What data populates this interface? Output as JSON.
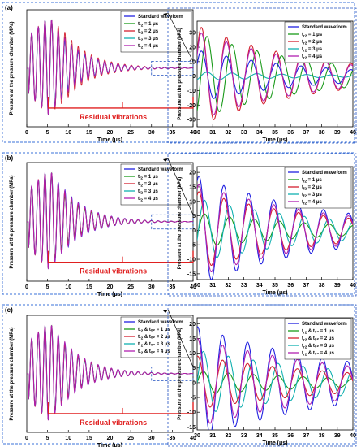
{
  "figure": {
    "panels": [
      {
        "label": "(a)",
        "annotation": "Residual vibrations",
        "legend": [
          "Standard waveform",
          "t_r2 = 1 μs",
          "t_r2 = 2 μs",
          "t_r2 = 3 μs",
          "t_r2 = 4 μs"
        ],
        "legend_display": [
          {
            "main": "Standard waveform",
            "sub": "",
            "tail": ""
          },
          {
            "main": "t",
            "sub": "r2",
            "tail": " = 1 μs"
          },
          {
            "main": "t",
            "sub": "r2",
            "tail": " = 2 μs"
          },
          {
            "main": "t",
            "sub": "r2",
            "tail": " = 3 μs"
          },
          {
            "main": "t",
            "sub": "r2",
            "tail": " = 4 μs"
          }
        ],
        "left_plot": {
          "type": "line",
          "xlabel": "Time (μs)",
          "ylabel": "Pressure at the pressure chamber (MPa)",
          "xlim": [
            0,
            40
          ],
          "xticks": [
            0,
            5,
            10,
            15,
            20,
            25,
            30,
            35,
            40
          ],
          "yticks": [],
          "ylim": [
            -1.0,
            1.0
          ],
          "envelope": {
            "peak": 0.85,
            "first_peak_time": 6.0,
            "period": 1.6,
            "decay_rate": 0.16,
            "rise_end": 5.5
          },
          "series_scale": [
            1.0,
            1.05,
            1.25,
            0.9,
            1.02
          ]
        },
        "right_plot": {
          "type": "line",
          "xlabel": "Time (μs)",
          "ylabel": "Pressure at the pressure chamber (kPa)",
          "xlim": [
            30,
            40
          ],
          "xticks": [
            30,
            31,
            32,
            33,
            34,
            35,
            36,
            37,
            38,
            39,
            40
          ],
          "ylim": [
            -35,
            38
          ],
          "yticks": [
            -30,
            -20,
            -10,
            0,
            10,
            20,
            30
          ],
          "envelope": {
            "period": 1.6,
            "decay_rate": 0.14,
            "phase": 0.35
          },
          "amplitudes": [
            18,
            30,
            35,
            3,
            31
          ]
        }
      },
      {
        "label": "(b)",
        "annotation": "Residual vibrations",
        "legend": [
          "Standard waveform",
          "t_f2 = 1 μs",
          "t_f2 = 2 μs",
          "t_f2 = 3 μs",
          "t_f2 = 4 μs"
        ],
        "legend_display": [
          {
            "main": "Standard waveform",
            "sub": "",
            "tail": ""
          },
          {
            "main": "t",
            "sub": "f2",
            "tail": " = 1 μs"
          },
          {
            "main": "t",
            "sub": "f2",
            "tail": " = 2 μs"
          },
          {
            "main": "t",
            "sub": "f2",
            "tail": " = 3 μs"
          },
          {
            "main": "t",
            "sub": "f2",
            "tail": " = 4 μs"
          }
        ],
        "left_plot": {
          "type": "line",
          "xlabel": "Time (μs)",
          "ylabel": "Pressure at the pressure chamber (MPa)",
          "xlim": [
            0,
            40
          ],
          "xticks": [
            0,
            5,
            10,
            15,
            20,
            25,
            30,
            35,
            40
          ],
          "yticks": [],
          "ylim": [
            -1.0,
            1.0
          ],
          "envelope": {
            "peak": 0.85,
            "first_peak_time": 6.0,
            "period": 1.6,
            "decay_rate": 0.16,
            "rise_end": 5.5
          },
          "series_scale": [
            1.08,
            0.85,
            0.95,
            1.0,
            1.05
          ]
        },
        "right_plot": {
          "type": "line",
          "xlabel": "Time (μs)",
          "ylabel": "Pressure at the pressure chamber (kPa)",
          "xlim": [
            30,
            40
          ],
          "xticks": [
            30,
            31,
            32,
            33,
            34,
            35,
            36,
            37,
            38,
            39,
            40
          ],
          "ylim": [
            -17,
            22
          ],
          "yticks": [
            -15,
            -10,
            -5,
            0,
            5,
            10,
            15,
            20
          ],
          "envelope": {
            "period": 1.6,
            "decay_rate": 0.12,
            "phase": 0.15
          },
          "amplitudes": [
            19,
            6,
            13.5,
            11,
            16
          ]
        }
      },
      {
        "label": "(c)",
        "annotation": "Residual vibrations",
        "legend": [
          "Standard waveform",
          "t_r2 & t_f2 = 1 μs",
          "t_r2 & t_f2 = 2 μs",
          "t_r2 & t_f2 = 3 μs",
          "t_r2 & t_f2 = 4 μs"
        ],
        "legend_display": [
          {
            "main": "Standard waveform",
            "sub": "",
            "tail": ""
          },
          {
            "main": "t",
            "sub": "r2",
            "tail": " & tₒ₂ = 1 μs"
          },
          {
            "main": "t",
            "sub": "r2",
            "tail": " & tₒ₂ = 2 μs"
          },
          {
            "main": "t",
            "sub": "r2",
            "tail": " & tₒ₂ = 3 μs"
          },
          {
            "main": "t",
            "sub": "r2",
            "tail": " & tₒ₂ = 4 μs"
          }
        ],
        "left_plot": {
          "type": "line",
          "xlabel": "Time (μs)",
          "ylabel": "Pressure at the pressure chamber (MPa)",
          "xlim": [
            0,
            40
          ],
          "xticks": [
            0,
            5,
            10,
            15,
            20,
            25,
            30,
            35,
            40
          ],
          "yticks": [],
          "ylim": [
            -1.0,
            1.0
          ],
          "envelope": {
            "peak": 0.85,
            "first_peak_time": 6.0,
            "period": 1.6,
            "decay_rate": 0.16,
            "rise_end": 5.5
          },
          "series_scale": [
            1.05,
            0.95,
            1.0,
            0.9,
            1.1
          ]
        },
        "right_plot": {
          "type": "line",
          "xlabel": "Time (μs)",
          "ylabel": "Pressure at the pressure chamber (kPa)",
          "xlim": [
            30,
            40
          ],
          "xticks": [
            30,
            31,
            32,
            33,
            34,
            35,
            36,
            37,
            38,
            39,
            40
          ],
          "ylim": [
            -16,
            22
          ],
          "yticks": [
            -15,
            -10,
            -5,
            0,
            5,
            10,
            15,
            20
          ],
          "envelope": {
            "period": 1.6,
            "decay_rate": 0.1,
            "phase": 0.05
          },
          "amplitudes": [
            19,
            4,
            9,
            11,
            15
          ]
        }
      }
    ],
    "series_colors": [
      "#2020e0",
      "#1a9a1a",
      "#d42030",
      "#10b0b0",
      "#b020b0"
    ],
    "accent_colors": {
      "annotation": "#e02020",
      "panel_border": "#3a70d8",
      "inset_border": "#2050c0"
    }
  },
  "chart_data": [
    {
      "type": "line",
      "title": "",
      "xlabel": "Time (μs)",
      "ylabel": "Pressure at the pressure chamber (MPa)",
      "xlim": [
        0,
        40
      ],
      "series": [
        {
          "name": "Standard waveform"
        },
        {
          "name": "t_r2 = 1 μs"
        },
        {
          "name": "t_r2 = 2 μs"
        },
        {
          "name": "t_r2 = 3 μs"
        },
        {
          "name": "t_r2 = 4 μs"
        }
      ]
    },
    {
      "type": "line",
      "title": "",
      "xlabel": "Time (μs)",
      "ylabel": "Pressure at the pressure chamber (kPa)",
      "xlim": [
        30,
        40
      ],
      "ylim": [
        -35,
        38
      ]
    },
    {
      "type": "line",
      "title": "",
      "xlabel": "Time (μs)",
      "ylabel": "Pressure at the pressure chamber (MPa)",
      "xlim": [
        0,
        40
      ],
      "series": [
        {
          "name": "Standard waveform"
        },
        {
          "name": "t_f2 = 1 μs"
        },
        {
          "name": "t_f2 = 2 μs"
        },
        {
          "name": "t_f2 = 3 μs"
        },
        {
          "name": "t_f2 = 4 μs"
        }
      ]
    },
    {
      "type": "line",
      "title": "",
      "xlabel": "Time (μs)",
      "ylabel": "Pressure at the pressure chamber (kPa)",
      "xlim": [
        30,
        40
      ],
      "ylim": [
        -17,
        22
      ]
    },
    {
      "type": "line",
      "title": "",
      "xlabel": "Time (μs)",
      "ylabel": "Pressure at the pressure chamber (MPa)",
      "xlim": [
        0,
        40
      ],
      "series": [
        {
          "name": "Standard waveform"
        },
        {
          "name": "t_r2 & t_f2 = 1 μs"
        },
        {
          "name": "t_r2 & t_f2 = 2 μs"
        },
        {
          "name": "t_r2 & t_f2 = 3 μs"
        },
        {
          "name": "t_r2 & t_f2 = 4 μs"
        }
      ]
    },
    {
      "type": "line",
      "title": "",
      "xlabel": "Time (μs)",
      "ylabel": "Pressure at the pressure chamber (kPa)",
      "xlim": [
        30,
        40
      ],
      "ylim": [
        -16,
        22
      ]
    }
  ]
}
